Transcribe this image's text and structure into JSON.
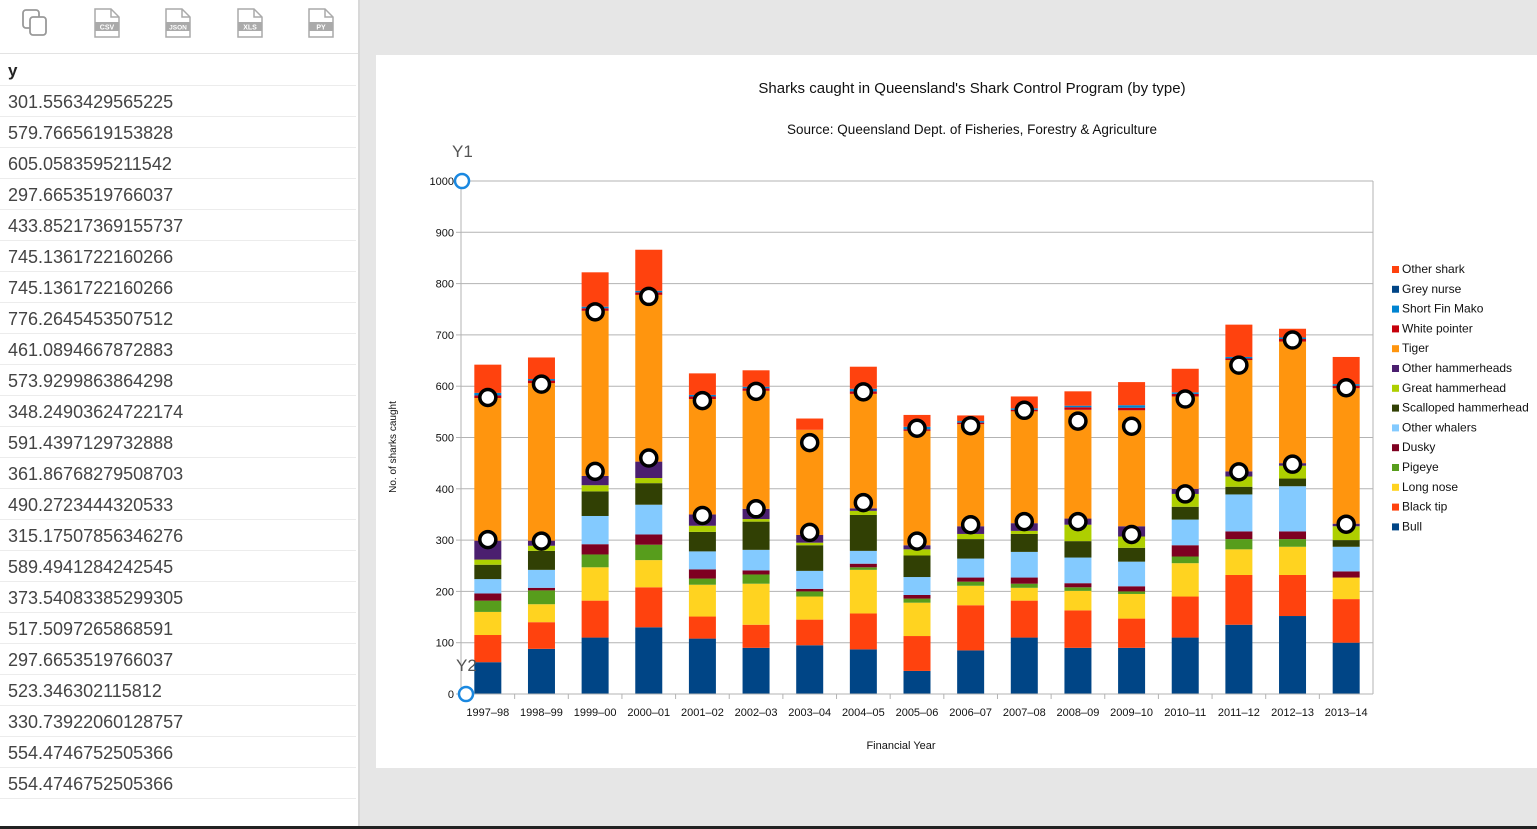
{
  "toolbar": {
    "icons": [
      {
        "name": "copy-icon",
        "label": ""
      },
      {
        "name": "csv-file-icon",
        "label": "CSV"
      },
      {
        "name": "json-file-icon",
        "label": "JSON"
      },
      {
        "name": "xls-file-icon",
        "label": "XLS"
      },
      {
        "name": "py-file-icon",
        "label": "PY"
      }
    ]
  },
  "table": {
    "header": "y",
    "rows": [
      "301.5563429565225",
      "579.7665619153828",
      "605.0583595211542",
      "297.6653519766037",
      "433.85217369155737",
      "745.1361722160266",
      "745.1361722160266",
      "776.2645453507512",
      "461.0894667872883",
      "573.9299863864298",
      "348.24903624722174",
      "591.4397129732888",
      "361.86768279508703",
      "490.2723444320533",
      "315.17507856346276",
      "589.4941284242545",
      "373.54083385299305",
      "517.5097265868591",
      "297.6653519766037",
      "523.346302115812",
      "330.73922060128757",
      "554.4746752505366",
      "554.4746752505366"
    ]
  },
  "axis_handles": {
    "y1": "Y1",
    "y2": "Y2"
  },
  "colors": {
    "bull": "#004586",
    "black_tip": "#ff420e",
    "long_nose": "#ffd320",
    "pigeye": "#579d1c",
    "dusky": "#7e0021",
    "other_whalers": "#83caff",
    "scalloped": "#314004",
    "great": "#aecf00",
    "other_hammer": "#4b1f6f",
    "tiger": "#ff950e",
    "white_pointer": "#c5000b",
    "short_fin_mako": "#0084d1",
    "grey_nurse": "#004586",
    "other_shark": "#ff420e",
    "marker_ring": "#1a88e0"
  },
  "chart_data": {
    "type": "bar",
    "stacked": true,
    "title": "Sharks caught in Queensland's Shark Control Program (by type)",
    "subtitle": "Source: Queensland Dept. of Fisheries, Forestry & Agriculture",
    "xlabel": "Financial Year",
    "ylabel": "No. of sharks caught",
    "ylim": [
      0,
      1000
    ],
    "yticks": [
      0,
      100,
      200,
      300,
      400,
      500,
      600,
      700,
      800,
      900,
      1000
    ],
    "grid": true,
    "legend_position": "right",
    "categories": [
      "1997–98",
      "1998–99",
      "1999–00",
      "2000–01",
      "2001–02",
      "2002–03",
      "2003–04",
      "2004–05",
      "2005–06",
      "2006–07",
      "2007–08",
      "2008–09",
      "2009–10",
      "2010–11",
      "2011–12",
      "2012–13",
      "2013–14"
    ],
    "series": [
      {
        "name": "Bull",
        "color_key": "bull",
        "values": [
          62,
          88,
          110,
          130,
          108,
          90,
          95,
          87,
          45,
          85,
          110,
          90,
          90,
          110,
          135,
          152,
          100
        ]
      },
      {
        "name": "Black tip",
        "color_key": "black_tip",
        "values": [
          53,
          52,
          72,
          78,
          43,
          45,
          50,
          70,
          68,
          88,
          72,
          73,
          57,
          80,
          97,
          80,
          85
        ]
      },
      {
        "name": "Long nose",
        "color_key": "long_nose",
        "values": [
          45,
          35,
          65,
          53,
          62,
          80,
          45,
          85,
          65,
          38,
          25,
          38,
          48,
          65,
          50,
          55,
          42
        ]
      },
      {
        "name": "Pigeye",
        "color_key": "pigeye",
        "values": [
          22,
          27,
          25,
          30,
          12,
          18,
          10,
          5,
          8,
          8,
          8,
          7,
          5,
          13,
          20,
          15,
          0
        ]
      },
      {
        "name": "Dusky",
        "color_key": "dusky",
        "values": [
          14,
          5,
          20,
          20,
          18,
          8,
          5,
          7,
          7,
          8,
          12,
          8,
          10,
          22,
          15,
          15,
          12
        ]
      },
      {
        "name": "Other whalers",
        "color_key": "other_whalers",
        "values": [
          28,
          35,
          55,
          58,
          35,
          40,
          35,
          25,
          35,
          37,
          50,
          50,
          48,
          50,
          72,
          88,
          48
        ]
      },
      {
        "name": "Scalloped hammerhead",
        "color_key": "scalloped",
        "values": [
          28,
          37,
          48,
          42,
          38,
          55,
          50,
          70,
          42,
          38,
          35,
          32,
          27,
          25,
          15,
          15,
          13
        ]
      },
      {
        "name": "Great hammerhead",
        "color_key": "great",
        "values": [
          10,
          10,
          12,
          10,
          12,
          5,
          5,
          8,
          12,
          10,
          6,
          32,
          22,
          25,
          20,
          25,
          27
        ]
      },
      {
        "name": "Other hammerheads",
        "color_key": "other_hammer",
        "values": [
          37,
          10,
          18,
          32,
          22,
          20,
          15,
          5,
          8,
          15,
          15,
          12,
          20,
          10,
          10,
          5,
          5
        ]
      },
      {
        "name": "Tiger",
        "color_key": "tiger",
        "values": [
          278,
          307,
          322,
          325,
          225,
          230,
          205,
          223,
          223,
          199,
          218,
          212,
          226,
          180,
          217,
          237,
          264
        ]
      },
      {
        "name": "White pointer",
        "color_key": "white_pointer",
        "values": [
          5,
          5,
          5,
          5,
          5,
          5,
          0,
          5,
          3,
          3,
          3,
          5,
          5,
          5,
          3,
          5,
          5
        ]
      },
      {
        "name": "Short Fin Mako",
        "color_key": "short_fin_mako",
        "values": [
          5,
          3,
          3,
          3,
          3,
          3,
          0,
          5,
          5,
          3,
          3,
          3,
          5,
          3,
          3,
          3,
          3
        ]
      },
      {
        "name": "Grey nurse",
        "color_key": "grey_nurse",
        "values": [
          0,
          0,
          0,
          0,
          0,
          0,
          0,
          0,
          0,
          0,
          0,
          0,
          0,
          0,
          0,
          0,
          0
        ]
      },
      {
        "name": "Other shark",
        "color_key": "other_shark",
        "values": [
          55,
          42,
          67,
          80,
          42,
          32,
          22,
          43,
          23,
          11,
          23,
          28,
          45,
          46,
          63,
          17,
          53
        ]
      }
    ],
    "markers": {
      "lower": [
        301,
        298,
        434,
        460,
        348,
        361,
        315,
        373,
        298,
        330,
        336,
        336,
        311,
        390,
        433,
        448,
        331
      ],
      "upper": [
        578,
        604,
        745,
        775,
        572,
        590,
        490,
        589,
        518,
        523,
        553,
        532,
        522,
        575,
        641,
        690,
        597
      ]
    }
  }
}
